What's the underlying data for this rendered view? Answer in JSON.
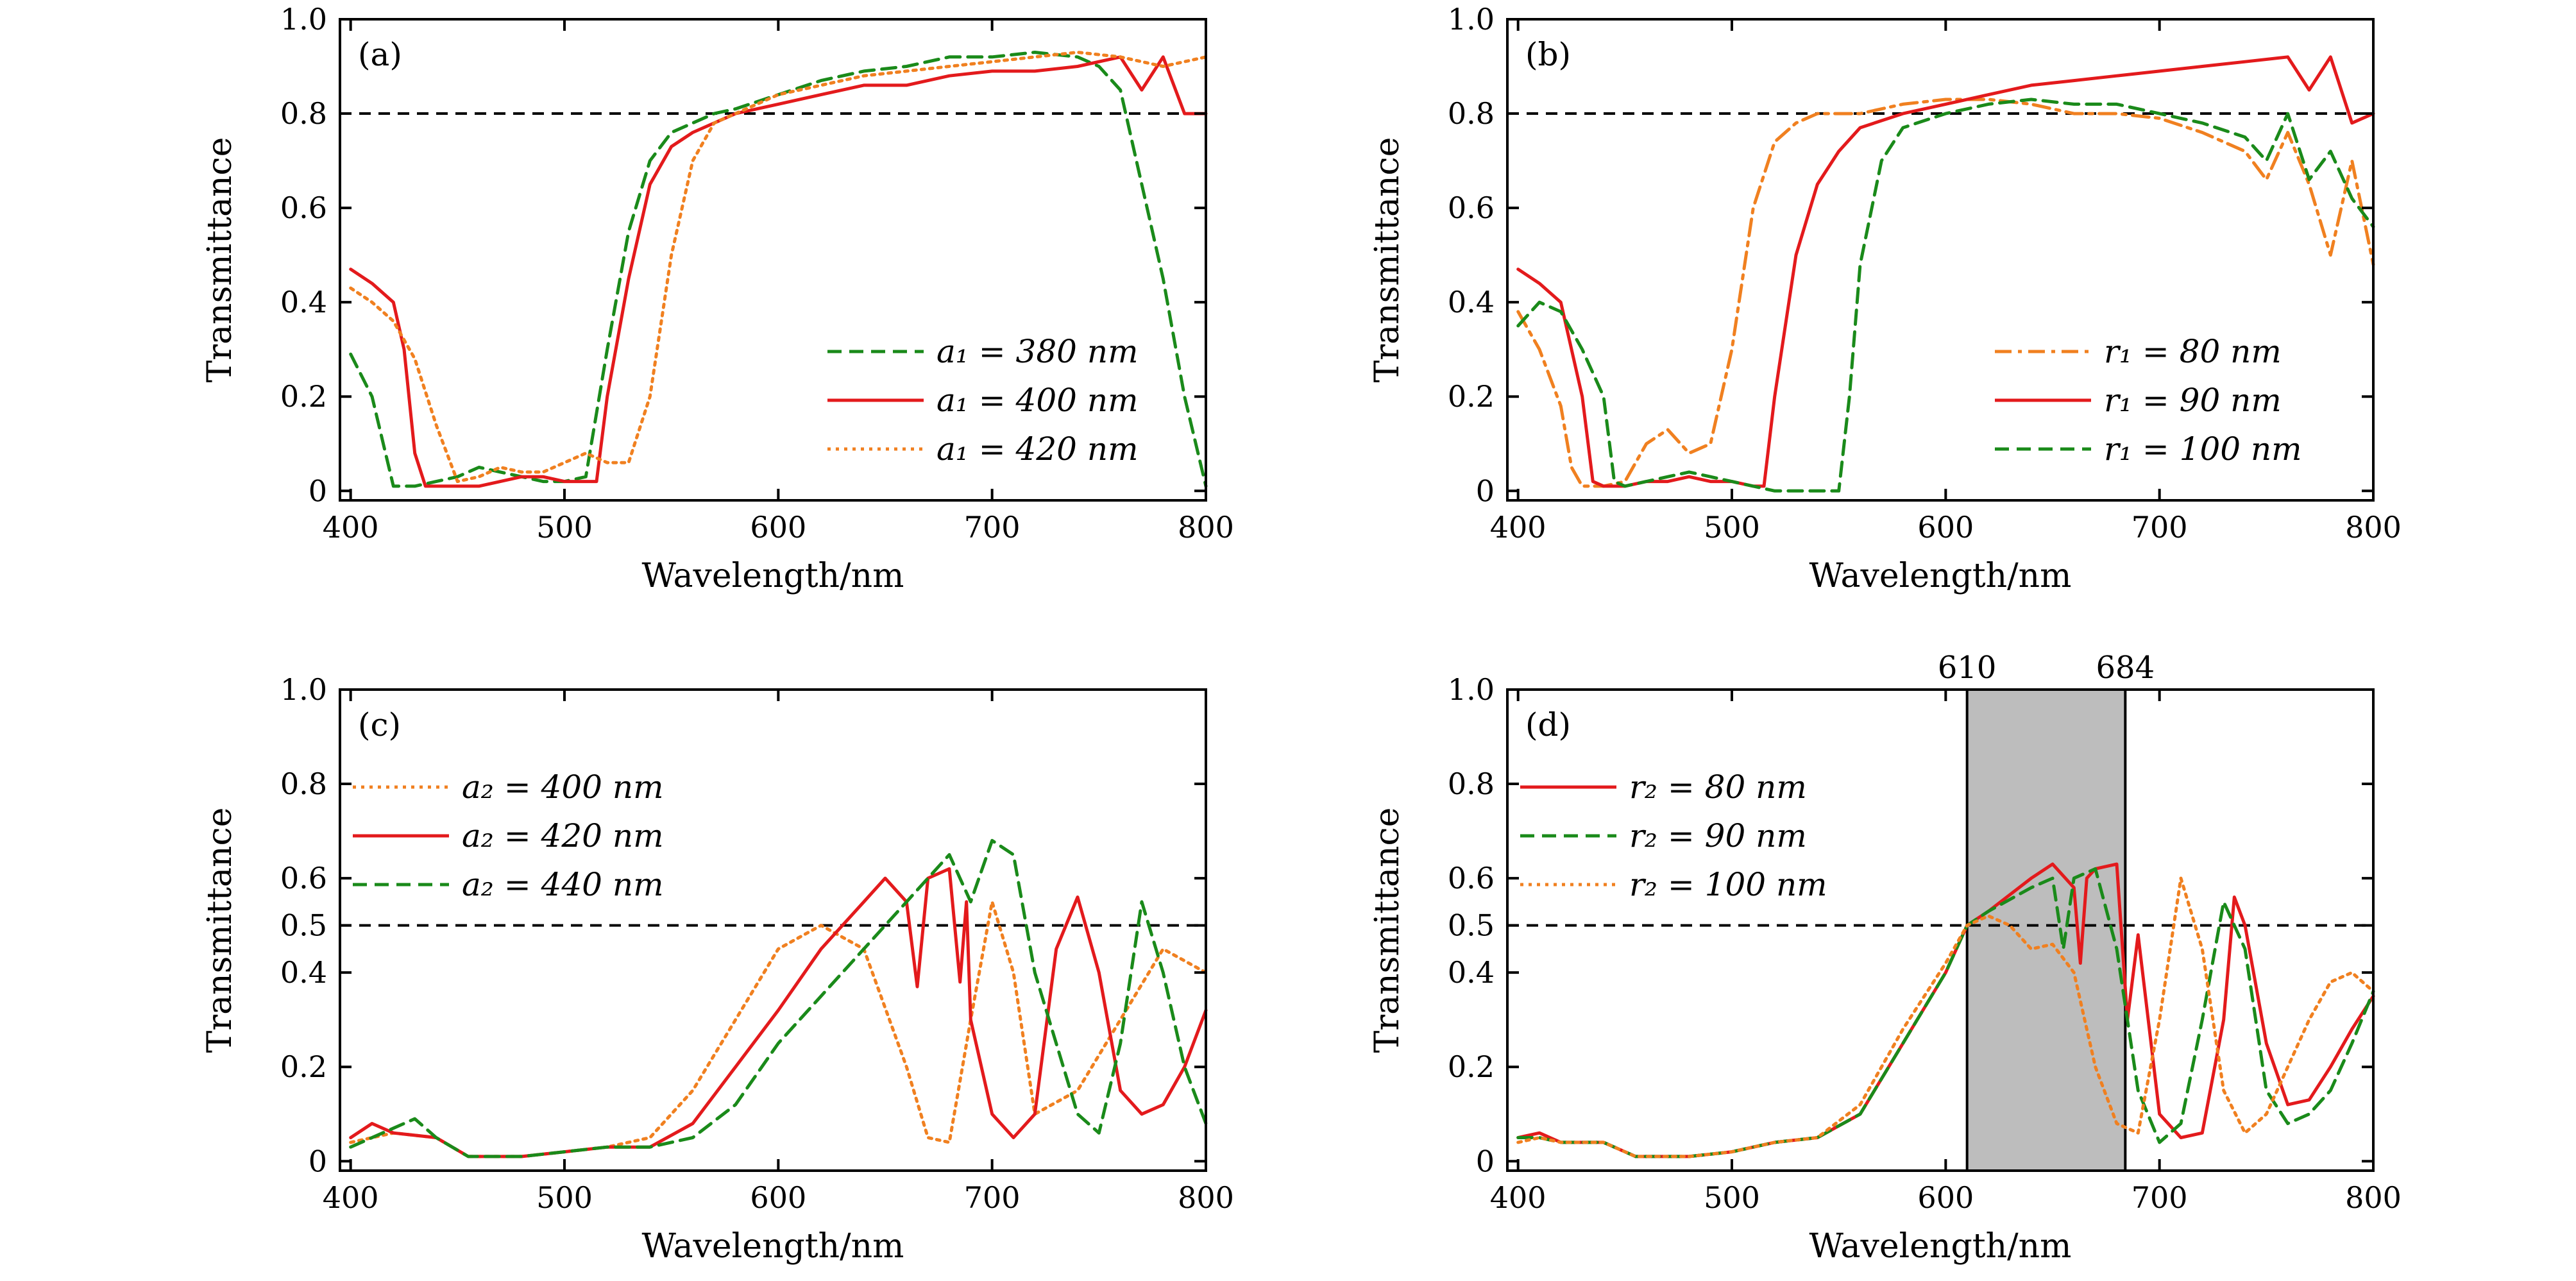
{
  "figure": {
    "panels": [
      "(a)",
      "(b)",
      "(c)",
      "(d)"
    ]
  },
  "chart_data": [
    {
      "panel": "(a)",
      "type": "line",
      "xlabel": "Wavelength/nm",
      "ylabel": "Transmittance",
      "xlim": [
        395,
        800
      ],
      "ylim": [
        -0.02,
        1.0
      ],
      "xticks": [
        400,
        500,
        600,
        700,
        800
      ],
      "yticks": [
        0,
        0.2,
        0.4,
        0.6,
        0.8,
        1.0
      ],
      "ytick_labels": [
        "0",
        "0.2",
        "0.4",
        "0.6",
        "0.8",
        "1.0"
      ],
      "reference_line": {
        "y": 0.8,
        "style": "dashed"
      },
      "legend_position": "lower-right",
      "series": [
        {
          "name": "a₁ = 380 nm",
          "color": "#1a8a1a",
          "style": "dashed",
          "x": [
            400,
            410,
            420,
            430,
            440,
            450,
            460,
            470,
            480,
            490,
            500,
            510,
            520,
            530,
            540,
            550,
            560,
            570,
            580,
            600,
            620,
            640,
            660,
            680,
            700,
            720,
            740,
            750,
            760,
            770,
            780,
            790,
            800
          ],
          "y": [
            0.29,
            0.2,
            0.01,
            0.01,
            0.02,
            0.03,
            0.05,
            0.04,
            0.03,
            0.02,
            0.02,
            0.03,
            0.3,
            0.55,
            0.7,
            0.76,
            0.78,
            0.8,
            0.81,
            0.84,
            0.87,
            0.89,
            0.9,
            0.92,
            0.92,
            0.93,
            0.92,
            0.9,
            0.85,
            0.65,
            0.45,
            0.2,
            0.01
          ]
        },
        {
          "name": "a₁ = 400 nm",
          "color": "#e31a1c",
          "style": "solid",
          "x": [
            400,
            410,
            420,
            425,
            430,
            435,
            440,
            450,
            460,
            470,
            480,
            490,
            500,
            510,
            515,
            520,
            530,
            540,
            550,
            560,
            570,
            580,
            600,
            620,
            640,
            660,
            680,
            700,
            720,
            740,
            760,
            770,
            780,
            790,
            800
          ],
          "y": [
            0.47,
            0.44,
            0.4,
            0.3,
            0.08,
            0.01,
            0.01,
            0.01,
            0.01,
            0.02,
            0.03,
            0.03,
            0.02,
            0.02,
            0.02,
            0.2,
            0.45,
            0.65,
            0.73,
            0.76,
            0.78,
            0.8,
            0.82,
            0.84,
            0.86,
            0.86,
            0.88,
            0.89,
            0.89,
            0.9,
            0.92,
            0.85,
            0.92,
            0.8,
            0.8
          ]
        },
        {
          "name": "a₁ = 420 nm",
          "color": "#f08020",
          "style": "dotted",
          "x": [
            400,
            410,
            420,
            430,
            440,
            450,
            460,
            470,
            480,
            490,
            500,
            510,
            520,
            530,
            540,
            550,
            560,
            570,
            580,
            600,
            620,
            640,
            660,
            680,
            700,
            720,
            740,
            760,
            780,
            800
          ],
          "y": [
            0.43,
            0.4,
            0.36,
            0.28,
            0.14,
            0.02,
            0.03,
            0.05,
            0.04,
            0.04,
            0.06,
            0.08,
            0.06,
            0.06,
            0.2,
            0.5,
            0.7,
            0.78,
            0.8,
            0.84,
            0.86,
            0.88,
            0.89,
            0.9,
            0.91,
            0.92,
            0.93,
            0.92,
            0.9,
            0.92
          ]
        }
      ]
    },
    {
      "panel": "(b)",
      "type": "line",
      "xlabel": "Wavelength/nm",
      "ylabel": "Transmittance",
      "xlim": [
        395,
        800
      ],
      "ylim": [
        -0.02,
        1.0
      ],
      "xticks": [
        400,
        500,
        600,
        700,
        800
      ],
      "yticks": [
        0,
        0.2,
        0.4,
        0.6,
        0.8,
        1.0
      ],
      "ytick_labels": [
        "0",
        "0.2",
        "0.4",
        "0.6",
        "0.8",
        "1.0"
      ],
      "reference_line": {
        "y": 0.8,
        "style": "dashed"
      },
      "legend_position": "lower-right",
      "series": [
        {
          "name": "r₁ = 80 nm",
          "color": "#f08020",
          "style": "dashdot",
          "x": [
            400,
            410,
            420,
            425,
            430,
            440,
            450,
            460,
            470,
            480,
            490,
            500,
            510,
            520,
            530,
            540,
            560,
            580,
            600,
            620,
            640,
            660,
            680,
            700,
            720,
            740,
            750,
            760,
            770,
            780,
            790,
            800
          ],
          "y": [
            0.38,
            0.3,
            0.18,
            0.05,
            0.01,
            0.01,
            0.02,
            0.1,
            0.13,
            0.08,
            0.1,
            0.3,
            0.6,
            0.74,
            0.78,
            0.8,
            0.8,
            0.82,
            0.83,
            0.83,
            0.82,
            0.8,
            0.8,
            0.79,
            0.76,
            0.72,
            0.66,
            0.76,
            0.65,
            0.5,
            0.7,
            0.48
          ]
        },
        {
          "name": "r₁ = 90 nm",
          "color": "#e31a1c",
          "style": "solid",
          "x": [
            400,
            410,
            420,
            430,
            435,
            440,
            450,
            460,
            470,
            480,
            490,
            500,
            510,
            515,
            520,
            530,
            540,
            550,
            560,
            580,
            600,
            620,
            640,
            660,
            680,
            700,
            720,
            740,
            760,
            770,
            780,
            790,
            800
          ],
          "y": [
            0.47,
            0.44,
            0.4,
            0.2,
            0.02,
            0.01,
            0.01,
            0.02,
            0.02,
            0.03,
            0.02,
            0.02,
            0.01,
            0.01,
            0.2,
            0.5,
            0.65,
            0.72,
            0.77,
            0.8,
            0.82,
            0.84,
            0.86,
            0.87,
            0.88,
            0.89,
            0.9,
            0.91,
            0.92,
            0.85,
            0.92,
            0.78,
            0.8
          ]
        },
        {
          "name": "r₁ = 100 nm",
          "color": "#1a8a1a",
          "style": "dashed",
          "x": [
            400,
            410,
            420,
            430,
            440,
            445,
            450,
            460,
            470,
            480,
            490,
            500,
            520,
            540,
            550,
            555,
            560,
            570,
            580,
            600,
            620,
            640,
            660,
            680,
            700,
            720,
            740,
            750,
            760,
            770,
            780,
            790,
            800
          ],
          "y": [
            0.35,
            0.4,
            0.38,
            0.3,
            0.2,
            0.02,
            0.01,
            0.02,
            0.03,
            0.04,
            0.03,
            0.02,
            0.0,
            0.0,
            0.0,
            0.2,
            0.48,
            0.7,
            0.77,
            0.8,
            0.82,
            0.83,
            0.82,
            0.82,
            0.8,
            0.78,
            0.75,
            0.7,
            0.8,
            0.66,
            0.72,
            0.62,
            0.56
          ]
        }
      ]
    },
    {
      "panel": "(c)",
      "type": "line",
      "xlabel": "Wavelength/nm",
      "ylabel": "Transmittance",
      "xlim": [
        395,
        800
      ],
      "ylim": [
        -0.02,
        1.0
      ],
      "xticks": [
        400,
        500,
        600,
        700,
        800
      ],
      "yticks": [
        0,
        0.2,
        0.4,
        0.5,
        0.6,
        0.8,
        1.0
      ],
      "ytick_labels": [
        "0",
        "0.2",
        "0.4",
        "0.5",
        "0.6",
        "0.8",
        "1.0"
      ],
      "reference_line": {
        "y": 0.5,
        "style": "dashed"
      },
      "legend_position": "top-left",
      "series": [
        {
          "name": "a₂ = 400 nm",
          "color": "#f08020",
          "style": "dotted",
          "x": [
            400,
            420,
            440,
            455,
            480,
            500,
            520,
            540,
            560,
            580,
            600,
            620,
            640,
            660,
            670,
            680,
            690,
            700,
            710,
            720,
            740,
            760,
            780,
            800
          ],
          "y": [
            0.04,
            0.06,
            0.05,
            0.01,
            0.01,
            0.02,
            0.03,
            0.05,
            0.15,
            0.3,
            0.45,
            0.5,
            0.45,
            0.2,
            0.05,
            0.04,
            0.3,
            0.55,
            0.4,
            0.1,
            0.15,
            0.3,
            0.45,
            0.4
          ]
        },
        {
          "name": "a₂ = 420 nm",
          "color": "#e31a1c",
          "style": "solid",
          "x": [
            400,
            410,
            420,
            440,
            455,
            480,
            500,
            520,
            540,
            560,
            580,
            600,
            620,
            640,
            650,
            660,
            665,
            670,
            680,
            685,
            688,
            690,
            700,
            710,
            720,
            730,
            740,
            750,
            760,
            770,
            780,
            790,
            800
          ],
          "y": [
            0.05,
            0.08,
            0.06,
            0.05,
            0.01,
            0.01,
            0.02,
            0.03,
            0.03,
            0.08,
            0.2,
            0.32,
            0.45,
            0.55,
            0.6,
            0.55,
            0.37,
            0.6,
            0.62,
            0.38,
            0.55,
            0.3,
            0.1,
            0.05,
            0.1,
            0.45,
            0.56,
            0.4,
            0.15,
            0.1,
            0.12,
            0.2,
            0.32
          ]
        },
        {
          "name": "a₂ = 440 nm",
          "color": "#1a8a1a",
          "style": "dashed",
          "x": [
            400,
            420,
            430,
            440,
            455,
            480,
            500,
            520,
            540,
            560,
            580,
            600,
            620,
            640,
            660,
            670,
            680,
            690,
            700,
            710,
            720,
            740,
            750,
            760,
            770,
            780,
            790,
            800
          ],
          "y": [
            0.03,
            0.07,
            0.09,
            0.05,
            0.01,
            0.01,
            0.02,
            0.03,
            0.03,
            0.05,
            0.12,
            0.25,
            0.35,
            0.45,
            0.55,
            0.6,
            0.65,
            0.55,
            0.68,
            0.65,
            0.4,
            0.1,
            0.06,
            0.25,
            0.55,
            0.4,
            0.2,
            0.08
          ]
        }
      ]
    },
    {
      "panel": "(d)",
      "type": "line",
      "xlabel": "Wavelength/nm",
      "ylabel": "Transmittance",
      "xlim": [
        395,
        800
      ],
      "ylim": [
        -0.02,
        1.0
      ],
      "xticks": [
        400,
        500,
        600,
        700,
        800
      ],
      "yticks": [
        0,
        0.2,
        0.4,
        0.5,
        0.6,
        0.8,
        1.0
      ],
      "ytick_labels": [
        "0",
        "0.2",
        "0.4",
        "0.5",
        "0.6",
        "0.8",
        "1.0"
      ],
      "reference_line": {
        "y": 0.5,
        "style": "dashed"
      },
      "highlight_band": {
        "x0": 610,
        "x1": 684,
        "labels": [
          "610",
          "684"
        ],
        "color": "#bdbdbd"
      },
      "legend_position": "top-left",
      "series": [
        {
          "name": "r₂ = 80 nm",
          "color": "#e31a1c",
          "style": "solid",
          "x": [
            400,
            410,
            420,
            440,
            455,
            480,
            500,
            520,
            540,
            560,
            580,
            600,
            610,
            620,
            640,
            650,
            660,
            663,
            666,
            670,
            680,
            685,
            690,
            700,
            710,
            720,
            730,
            735,
            740,
            750,
            760,
            770,
            780,
            790,
            800
          ],
          "y": [
            0.05,
            0.06,
            0.04,
            0.04,
            0.01,
            0.01,
            0.02,
            0.04,
            0.05,
            0.1,
            0.25,
            0.4,
            0.5,
            0.53,
            0.6,
            0.63,
            0.58,
            0.42,
            0.6,
            0.62,
            0.63,
            0.3,
            0.48,
            0.1,
            0.05,
            0.06,
            0.3,
            0.56,
            0.5,
            0.25,
            0.12,
            0.13,
            0.2,
            0.28,
            0.35
          ]
        },
        {
          "name": "r₂ = 90 nm",
          "color": "#1a8a1a",
          "style": "dashed",
          "x": [
            400,
            410,
            420,
            440,
            455,
            480,
            500,
            520,
            540,
            560,
            580,
            600,
            610,
            620,
            640,
            650,
            655,
            660,
            670,
            680,
            690,
            700,
            710,
            720,
            730,
            740,
            750,
            760,
            770,
            780,
            790,
            800
          ],
          "y": [
            0.05,
            0.05,
            0.04,
            0.04,
            0.01,
            0.01,
            0.02,
            0.04,
            0.05,
            0.1,
            0.25,
            0.4,
            0.5,
            0.53,
            0.58,
            0.6,
            0.45,
            0.6,
            0.62,
            0.45,
            0.15,
            0.04,
            0.08,
            0.3,
            0.55,
            0.45,
            0.15,
            0.08,
            0.1,
            0.15,
            0.25,
            0.36
          ]
        },
        {
          "name": "r₂ = 100 nm",
          "color": "#f08020",
          "style": "dotted",
          "x": [
            400,
            410,
            420,
            440,
            455,
            480,
            500,
            520,
            540,
            560,
            580,
            600,
            610,
            620,
            630,
            640,
            650,
            660,
            670,
            680,
            690,
            700,
            710,
            720,
            730,
            740,
            750,
            760,
            770,
            780,
            790,
            800
          ],
          "y": [
            0.04,
            0.05,
            0.04,
            0.04,
            0.01,
            0.01,
            0.02,
            0.04,
            0.05,
            0.12,
            0.28,
            0.42,
            0.5,
            0.52,
            0.5,
            0.45,
            0.46,
            0.4,
            0.2,
            0.08,
            0.06,
            0.3,
            0.6,
            0.45,
            0.15,
            0.06,
            0.1,
            0.2,
            0.3,
            0.38,
            0.4,
            0.36
          ]
        }
      ]
    }
  ]
}
